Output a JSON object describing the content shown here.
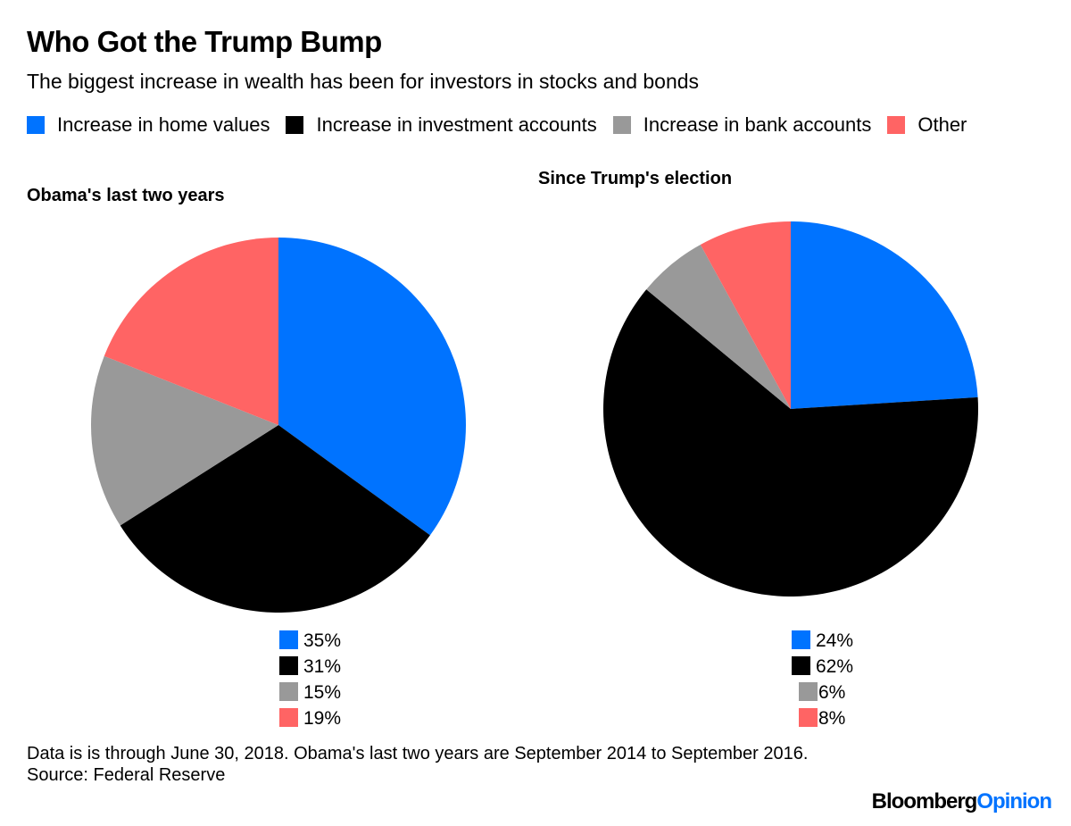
{
  "header": {
    "title": "Who Got the Trump Bump",
    "subtitle": "The biggest increase in wealth has been for investors in stocks and bonds"
  },
  "colors": {
    "home": "#0073ff",
    "investment": "#000000",
    "bank": "#999999",
    "other": "#ff6464"
  },
  "chart_data": [
    {
      "type": "pie",
      "title": "Obama's last two years",
      "categories": [
        "Increase in home values",
        "Increase in investment accounts",
        "Increase in bank accounts",
        "Other"
      ],
      "values": [
        35,
        31,
        15,
        19
      ],
      "labels": [
        "35%",
        "31%",
        "15%",
        "19%"
      ],
      "legend": "top"
    },
    {
      "type": "pie",
      "title": "Since Trump's election",
      "categories": [
        "Increase in home values",
        "Increase in investment accounts",
        "Increase in bank accounts",
        "Other"
      ],
      "values": [
        24,
        62,
        6,
        8
      ],
      "labels": [
        "24%",
        "62%",
        "6%",
        "8%"
      ],
      "legend": "top"
    }
  ],
  "footer": {
    "note": "Data is is through June 30, 2018. Obama's last two years are September 2014 to September 2016.",
    "source": "Source: Federal Reserve",
    "logo_main": "Bloomberg",
    "logo_accent": "Opinion"
  }
}
